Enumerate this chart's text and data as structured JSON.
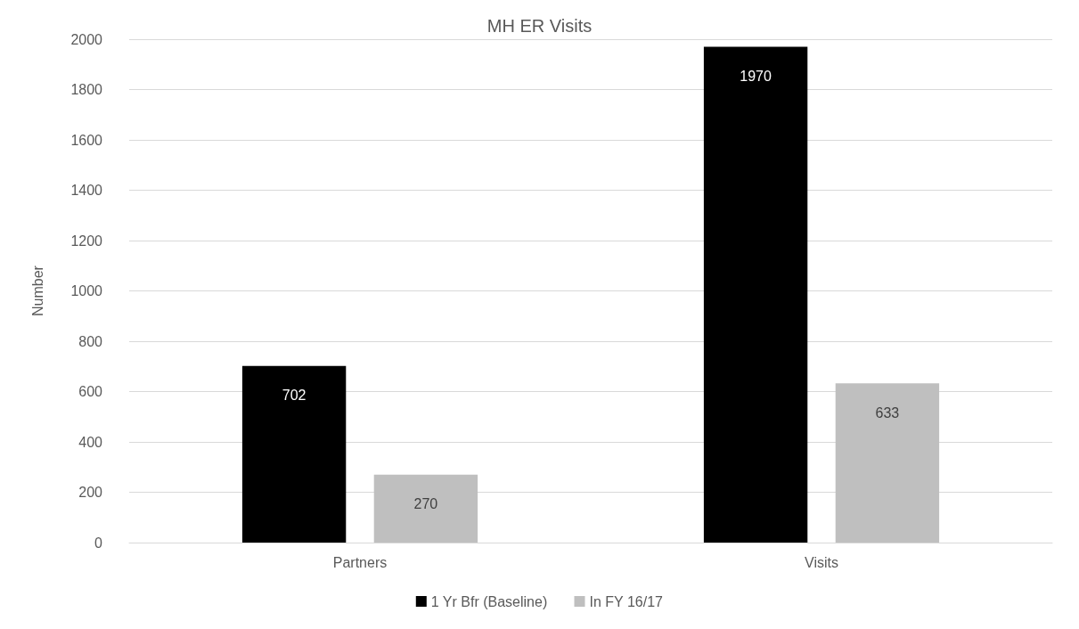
{
  "chart_data": {
    "type": "bar",
    "title": "MH ER Visits",
    "ylabel": "Number",
    "categories": [
      "Partners",
      "Visits"
    ],
    "series": [
      {
        "name": "1 Yr Bfr (Baseline)",
        "color": "#000000",
        "values": [
          702,
          1970
        ]
      },
      {
        "name": "In FY 16/17",
        "color": "#bfbfbf",
        "values": [
          270,
          633
        ]
      }
    ],
    "ylim": [
      0,
      2000
    ],
    "yticks": [
      0,
      200,
      400,
      600,
      800,
      1000,
      1200,
      1400,
      1600,
      1800,
      2000
    ],
    "grid": "y",
    "legend": "bottom",
    "data_labels": true
  }
}
